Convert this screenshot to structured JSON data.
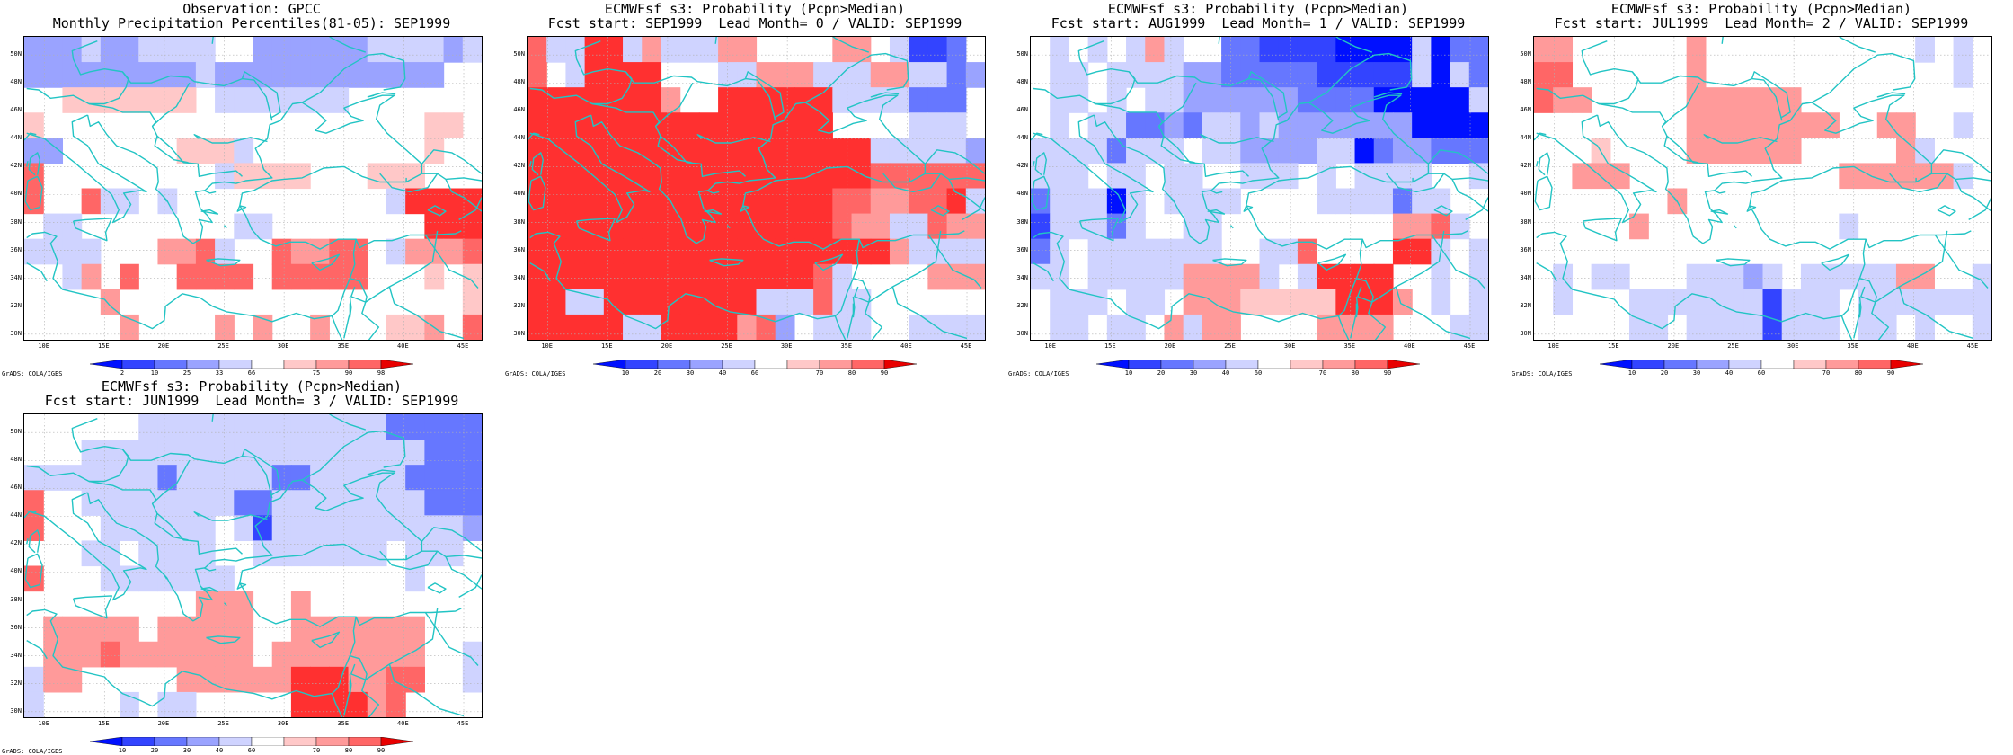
{
  "lat_labels": [
    "50N",
    "48N",
    "46N",
    "44N",
    "42N",
    "40N",
    "38N",
    "36N",
    "34N",
    "32N",
    "30N"
  ],
  "lon_labels": [
    "10E",
    "15E",
    "20E",
    "25E",
    "30E",
    "35E",
    "40E",
    "45E"
  ],
  "credit": "GrADS: COLA/IGES",
  "colors": {
    "coast": "#22c4c4",
    "grid": "#b0b0b0",
    "cb_obs": [
      "#0010ff",
      "#3344ff",
      "#6677ff",
      "#9aa3ff",
      "#cfd3ff",
      "#ffffff",
      "#ffc8c8",
      "#ff9a9a",
      "#ff6666",
      "#ff3030",
      "#e80000"
    ],
    "cb_fc": [
      "#0010ff",
      "#3344ff",
      "#6677ff",
      "#9aa3ff",
      "#cfd3ff",
      "#ffffff",
      "#ffc8c8",
      "#ff9a9a",
      "#ff6666",
      "#ff3030",
      "#e80000"
    ]
  },
  "cb_obs_labels": [
    "2",
    "10",
    "25",
    "33",
    "66",
    "75",
    "90",
    "98"
  ],
  "cb_fc_labels": [
    "10",
    "20",
    "30",
    "40",
    "60",
    "70",
    "80",
    "90"
  ],
  "panels": [
    {
      "title1": "Observation: GPCC",
      "title2": "Monthly Precipitation Percentiles(81-05): SEP1999",
      "colorbar": "obs",
      "grid": [
        "444B44BBBB55444444BBBB4B",
        "444444444B44444444444455",
        "55AAAAAAA5BBBBBBB5555555",
        "A55555555555555555555AA5",
        "44555555AAAB555555555A55",
        "8555555555BAAAA555AAA555",
        "8558BB5B55555555555B9999",
        "5BB55555555BB55555555999",
        "BBBB555778B55877885B7778",
        "55B758558888588888555A5A",
        "55557555555555555555555A",
        "5555575555757557555AA758"
      ]
    },
    {
      "title1": "ECMWFsf s3: Probability (Pcpn>Median)",
      "title2": "Fcst start: SEP1999  Lead Month= 0 / VALID: SEP1999",
      "colorbar": "fc",
      "grid": [
        "8BB99B7BBB775555775B2235",
        "85B9999555BB777BBB77BB34",
        "9999999755999999BBBB3335",
        "99999999999999996555BBB5",
        "999999999999999999BBBBB4",
        "999999999999999999888888",
        "99999999999999998877889B",
        "9999999999999999877BB877",
        "99999999999999999997BBBB",
        "9999999999999998B5555777",
        "99BB99999999BBB8BB555555",
        "99999BB99997845BBB55BBBB"
      ]
    },
    {
      "title1": "ECMWFsf s3: Probability (Pcpn>Median)",
      "title2": "Fcst start: AUG1999  Lead Month= 1 / VALID: SEP1999",
      "colorbar": "fc",
      "grid": [
        "5B5B5B7B553322221111B133",
        "5BB5BBBB443333322222B1B3",
        "5BB5B5BB444444333311111B",
        "5B5BB3343BB4B44444441111",
        "BBBB3BBB5BB4444BB1344333",
        "BBB5BB5BB55BBB5B5BBBB55B",
        "3BBB1B5BBBB5555BBBB3BB55",
        "2BBB3B55BB555555555778B5",
        "3B5BBBBBBB55BB8555599B5B",
        "BB5BBBBB7777B5B999955B5B",
        "5BBB5BB5777AAAAA99975B5B",
        "5BB5BB57B7755557777555BB"
      ]
    },
    {
      "title1": "ECMWFsf s3: Probability (Pcpn>Median)",
      "title2": "Fcst start: JUL1999  Lead Month= 2 / VALID: SEP1999",
      "colorbar": "fc",
      "grid": [
        "77555555755555555555B5B5",
        "8855555575555555555555B5",
        "877555557777775555555555",
        "5555555577777777557755B5",
        "555A5555777777555557B555",
        "5577755555555555777777B5",
        "555555575555555555555555",
        "5555575555555555B5555555",
        "555555555555555555555555",
        "5B5BB555BBB4B5BBBBB7755B",
        "5B555BBBBBBB2BBB5BBBBBBB",
        "55555BB5BBBB2BBB5BB5B55B"
      ]
    },
    {
      "title1": "ECMWFsf s3: Probability (Pcpn>Median)",
      "title2": "Fcst start: JUN1999  Lead Month= 3 / VALID: SEP1999",
      "colorbar": "fc",
      "grid": [
        "555555BBBBBBBBBBBBB33333",
        "555BBBBBBBBBBBBBBBBBB333",
        "BBBBBBB3BBBBB33BBBBB3333",
        "855BBBBBBBB33BBBBBBBB333",
        "8555BBBBBB5B2BBBBBBBBBB4",
        "555BB5BBBB55BBBBBBB5BBB5",
        "8555BBBBBBB555555555B555",
        "555555555777557555555555",
        "577777577777557777777555",
        "57778777777757777777755B",
        "B7755555777777999778855B",
        "B5555B5BB555559999785555"
      ]
    }
  ]
}
